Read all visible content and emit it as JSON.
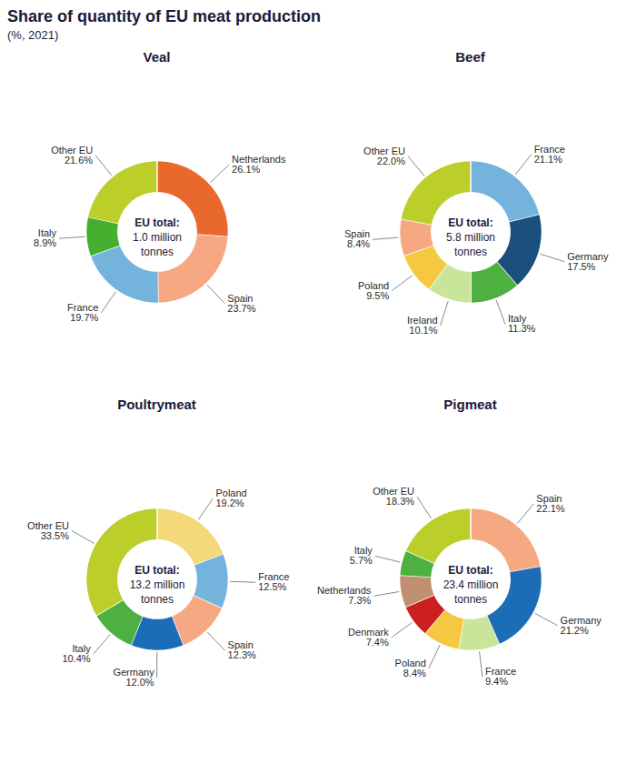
{
  "title": "Share of quantity of EU meat production",
  "subtitle": "(%, 2021)",
  "chart_data": [
    {
      "type": "donut",
      "title": "Veal",
      "annotations": [
        "EU total:",
        "1.0 million",
        "tonnes"
      ],
      "categories": [
        "Netherlands",
        "Spain",
        "France",
        "Italy",
        "Other EU"
      ],
      "values": [
        26.1,
        23.7,
        19.7,
        8.9,
        21.6
      ],
      "value_labels": [
        "26.1%",
        "23.7%",
        "19.7%",
        "8.9%",
        "21.6%"
      ],
      "colors": [
        "#E8692B",
        "#F5A882",
        "#74B4DC",
        "#45B030",
        "#BCCE2A"
      ],
      "data_labels": true
    },
    {
      "type": "donut",
      "title": "Beef",
      "annotations": [
        "EU total:",
        "5.8 million",
        "tonnes"
      ],
      "categories": [
        "France",
        "Germany",
        "Italy",
        "Ireland",
        "Poland",
        "Spain",
        "Other EU"
      ],
      "values": [
        21.1,
        17.5,
        11.3,
        10.1,
        9.5,
        8.4,
        22.0
      ],
      "value_labels": [
        "21.1%",
        "17.5%",
        "11.3%",
        "10.1%",
        "9.5%",
        "8.4%",
        "22.0%"
      ],
      "colors": [
        "#74B4DC",
        "#1B4F7E",
        "#4DB040",
        "#C8E59A",
        "#F5C842",
        "#F5A882",
        "#BCCE2A"
      ],
      "data_labels": true
    },
    {
      "type": "donut",
      "title": "Poultrymeat",
      "annotations": [
        "EU total:",
        "13.2 million",
        "tonnes"
      ],
      "categories": [
        "Poland",
        "France",
        "Spain",
        "Germany",
        "Italy",
        "Other EU"
      ],
      "values": [
        19.2,
        12.5,
        12.3,
        12.0,
        10.4,
        33.5
      ],
      "value_labels": [
        "19.2%",
        "12.5%",
        "12.3%",
        "12.0%",
        "10.4%",
        "33.5%"
      ],
      "colors": [
        "#F5D87A",
        "#74B4DC",
        "#F5A882",
        "#1B6DB8",
        "#4DB040",
        "#BCCE2A"
      ],
      "data_labels": true
    },
    {
      "type": "donut",
      "title": "Pigmeat",
      "annotations": [
        "EU total:",
        "23.4 million",
        "tonnes"
      ],
      "categories": [
        "Spain",
        "Germany",
        "France",
        "Poland",
        "Denmark",
        "Netherlands",
        "Italy",
        "Other EU"
      ],
      "values": [
        22.1,
        21.2,
        9.4,
        8.4,
        7.4,
        7.3,
        5.7,
        18.3
      ],
      "value_labels": [
        "22.1%",
        "21.2%",
        "9.4%",
        "8.4%",
        "7.4%",
        "7.3%",
        "5.7%",
        "18.3%"
      ],
      "colors": [
        "#F5A882",
        "#1B6DB8",
        "#C8E59A",
        "#F5C842",
        "#CC2020",
        "#C09070",
        "#4DB040",
        "#BCCE2A"
      ],
      "data_labels": true
    }
  ]
}
